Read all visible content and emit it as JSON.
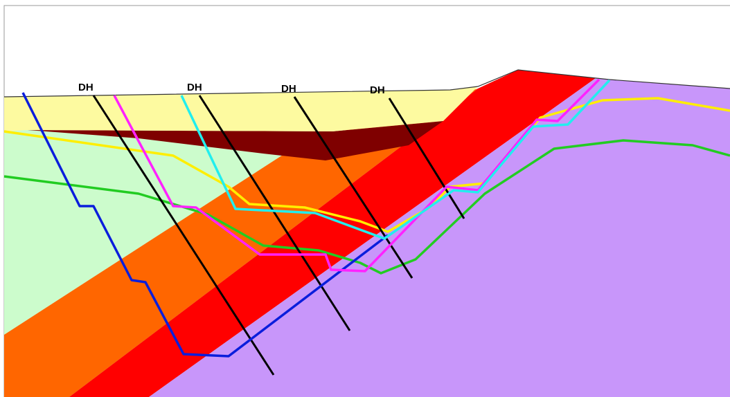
{
  "drillholes": [
    {
      "label": "DH"
    },
    {
      "label": "DH"
    },
    {
      "label": "DH"
    },
    {
      "label": "DH"
    }
  ]
}
